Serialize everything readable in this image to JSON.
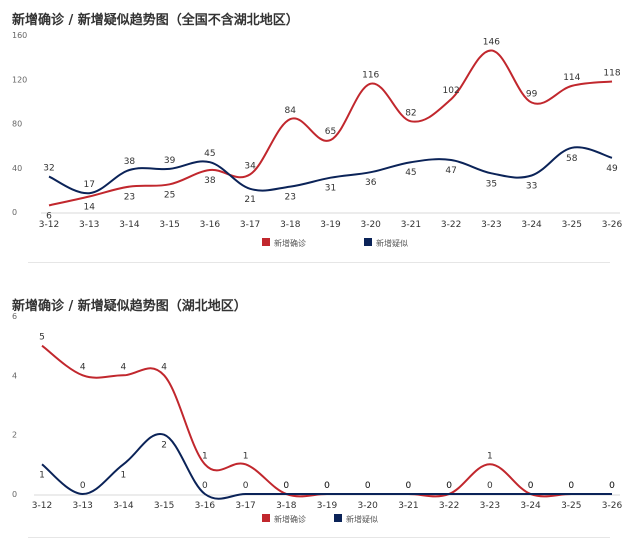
{
  "chart_data": [
    {
      "type": "line",
      "title": "新增确诊 / 新增疑似趋势图（全国不含湖北地区）",
      "xlabel": "",
      "ylabel": "",
      "categories": [
        "3-12",
        "3-13",
        "3-14",
        "3-15",
        "3-16",
        "3-17",
        "3-18",
        "3-19",
        "3-20",
        "3-21",
        "3-22",
        "3-23",
        "3-24",
        "3-25",
        "3-26"
      ],
      "ylim": [
        0,
        160
      ],
      "yticks": [
        0,
        40,
        80,
        120,
        160
      ],
      "grid": false,
      "legend_position": "bottom-center",
      "series": [
        {
          "name": "新增确诊",
          "color": "#c1272d",
          "values": [
            6,
            14,
            23,
            25,
            38,
            34,
            84,
            65,
            116,
            82,
            102,
            146,
            99,
            114,
            118
          ]
        },
        {
          "name": "新增疑似",
          "color": "#0b2358",
          "values": [
            32,
            17,
            38,
            39,
            45,
            21,
            23,
            31,
            36,
            45,
            47,
            35,
            33,
            58,
            49
          ]
        }
      ]
    },
    {
      "type": "line",
      "title": "新增确诊 / 新增疑似趋势图（湖北地区）",
      "xlabel": "",
      "ylabel": "",
      "categories": [
        "3-12",
        "3-13",
        "3-14",
        "3-15",
        "3-16",
        "3-17",
        "3-18",
        "3-19",
        "3-20",
        "3-21",
        "3-22",
        "3-23",
        "3-24",
        "3-25",
        "3-26"
      ],
      "ylim": [
        0,
        6
      ],
      "yticks": [
        0,
        2,
        4,
        6
      ],
      "grid": false,
      "legend_position": "bottom-center",
      "series": [
        {
          "name": "新增确诊",
          "color": "#c1272d",
          "values": [
            5,
            4,
            4,
            4,
            1,
            1,
            0,
            0,
            0,
            0,
            0,
            1,
            0,
            0,
            0
          ]
        },
        {
          "name": "新增疑似",
          "color": "#0b2358",
          "values": [
            1,
            0,
            1,
            2,
            0,
            0,
            0,
            0,
            0,
            0,
            0,
            0,
            0,
            0,
            0
          ]
        }
      ]
    }
  ]
}
